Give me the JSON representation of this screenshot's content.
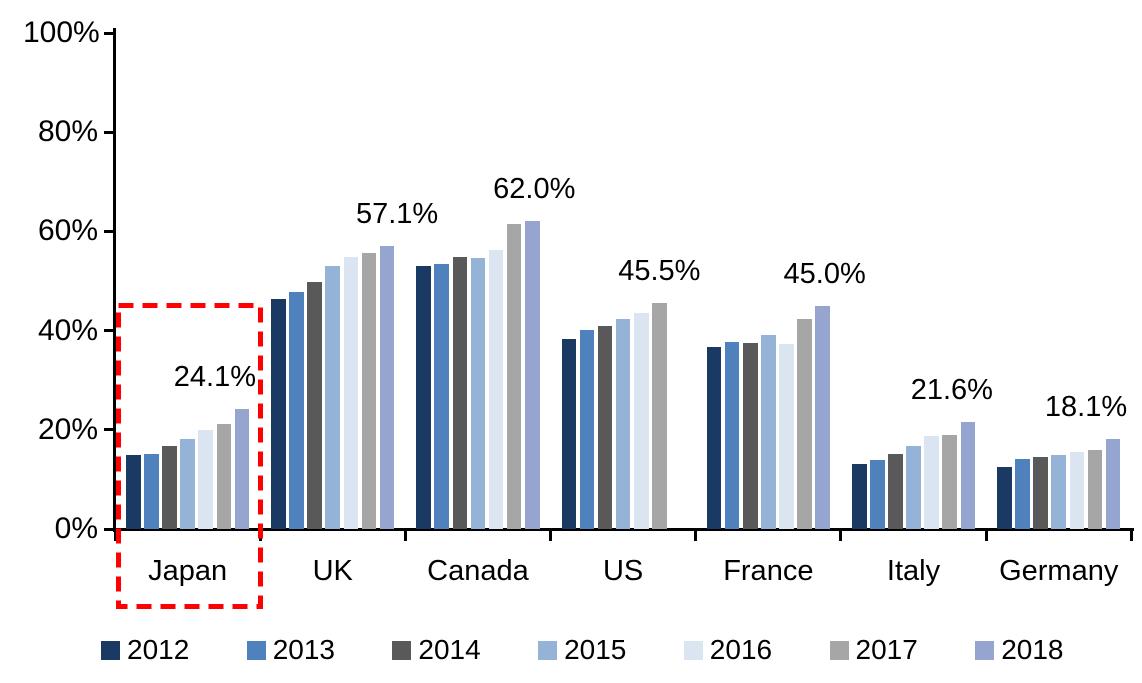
{
  "chart_data": {
    "type": "bar",
    "title": "",
    "xlabel": "",
    "ylabel": "",
    "categories": [
      "Japan",
      "UK",
      "Canada",
      "US",
      "France",
      "Italy",
      "Germany"
    ],
    "series": [
      {
        "name": "2012",
        "color": "#1A3A63",
        "values": [
          14.9,
          46.4,
          53.0,
          38.3,
          36.6,
          13.1,
          12.4
        ]
      },
      {
        "name": "2013",
        "color": "#4F81BD",
        "values": [
          15.2,
          47.8,
          53.4,
          40.1,
          37.7,
          14.0,
          14.1
        ]
      },
      {
        "name": "2014",
        "color": "#595959",
        "values": [
          16.8,
          49.8,
          54.9,
          41.0,
          37.6,
          15.1,
          14.5
        ]
      },
      {
        "name": "2015",
        "color": "#95B3D7",
        "values": [
          18.2,
          53.1,
          54.7,
          42.3,
          39.2,
          16.7,
          14.9
        ]
      },
      {
        "name": "2016",
        "color": "#DBE5F1",
        "values": [
          19.9,
          54.8,
          56.2,
          43.6,
          37.2,
          18.8,
          15.6
        ]
      },
      {
        "name": "2017",
        "color": "#A6A6A6",
        "values": [
          21.1,
          55.7,
          61.4,
          45.5,
          42.4,
          19.0,
          15.9
        ]
      },
      {
        "name": "2018",
        "color": "#95A5CF",
        "values": [
          24.1,
          57.1,
          62.0,
          null,
          45.0,
          21.6,
          18.1
        ]
      }
    ],
    "data_labels": [
      "24.1%",
      "57.1%",
      "62.0%",
      "45.5%",
      "45.0%",
      "21.6%",
      "18.1%"
    ],
    "y_axis": {
      "min": 0,
      "max": 100,
      "unit": "%",
      "tick_step": 20,
      "tick_labels": [
        "0%",
        "20%",
        "40%",
        "60%",
        "80%",
        "100%"
      ],
      "grid": false
    },
    "legend": {
      "position": "bottom",
      "items": [
        "2012",
        "2013",
        "2014",
        "2015",
        "2016",
        "2017",
        "2018"
      ]
    },
    "highlight": {
      "category": "Japan",
      "style": "dashed-rectangle",
      "color": "#FF0000"
    },
    "axis_color": "#000000",
    "background_color": "#FFFFFF"
  }
}
